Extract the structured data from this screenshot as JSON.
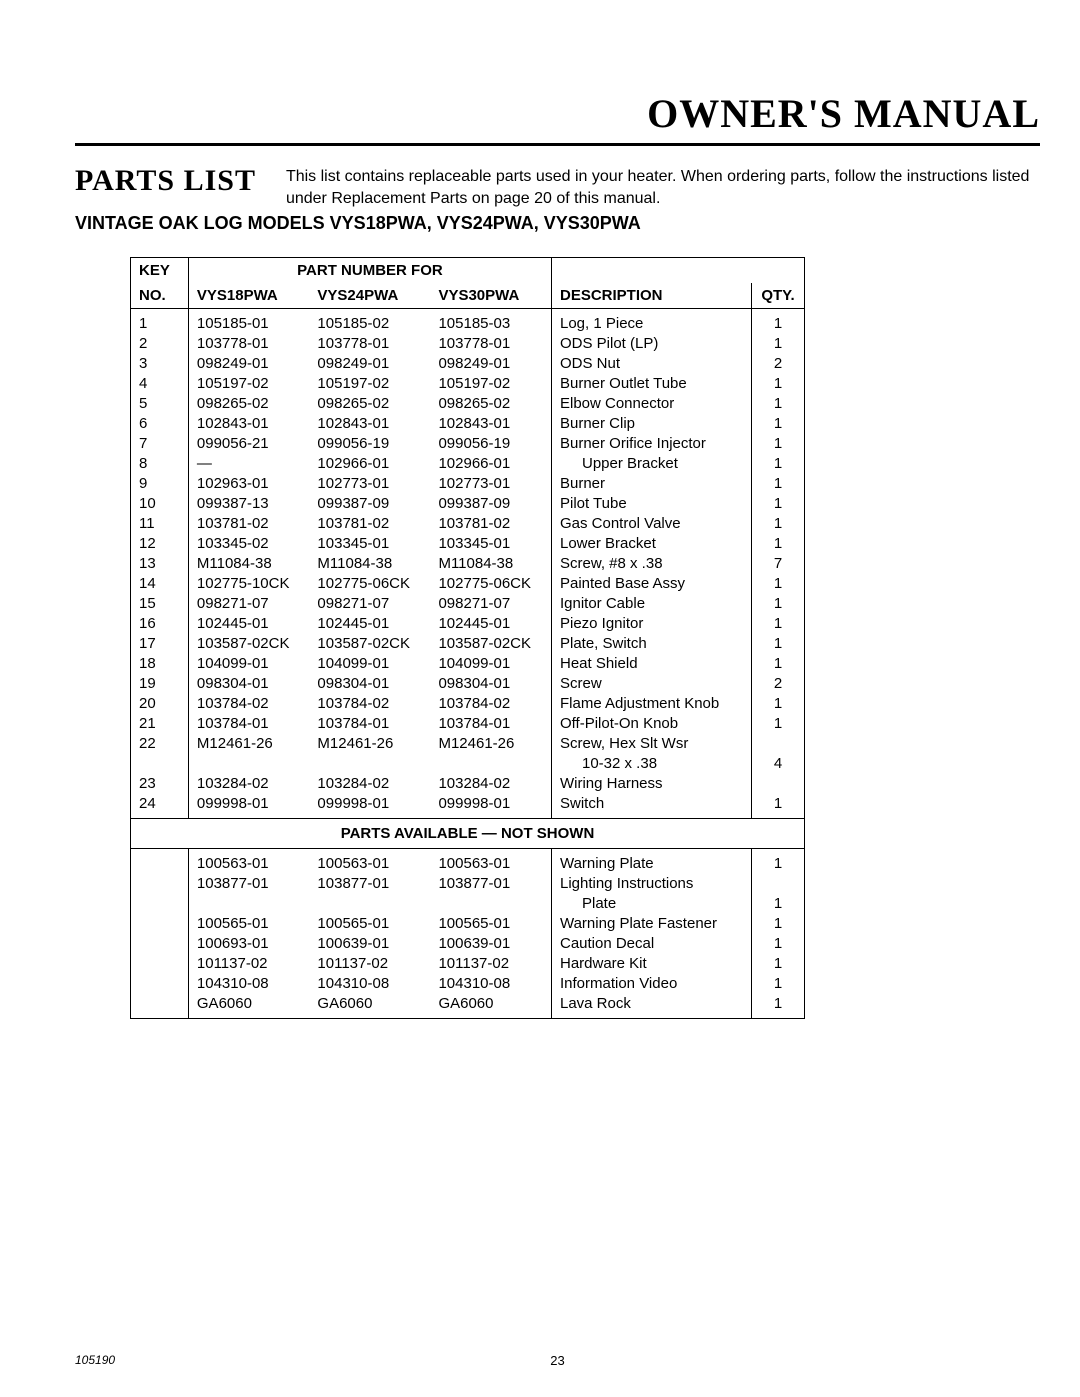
{
  "manual_title": "OWNER'S MANUAL",
  "section_title": "PARTS LIST",
  "intro_text": "This list contains replaceable parts used in your heater. When ordering parts, follow the instructions listed under Replacement Parts on page 20 of this manual.",
  "models_heading": "VINTAGE OAK LOG MODELS VYS18PWA, VYS24PWA, VYS30PWA",
  "headers": {
    "key_top": "KEY",
    "key_bot": "NO.",
    "part_group": "PART NUMBER FOR",
    "p1": "VYS18PWA",
    "p2": "VYS24PWA",
    "p3": "VYS30PWA",
    "desc": "DESCRIPTION",
    "qty": "QTY."
  },
  "rows": [
    {
      "k": "1",
      "a": "105185-01",
      "b": "105185-02",
      "c": "105185-03",
      "d": "Log, 1 Piece",
      "q": "1"
    },
    {
      "k": "2",
      "a": "103778-01",
      "b": "103778-01",
      "c": "103778-01",
      "d": "ODS Pilot (LP)",
      "q": "1"
    },
    {
      "k": "3",
      "a": "098249-01",
      "b": "098249-01",
      "c": "098249-01",
      "d": "ODS Nut",
      "q": "2"
    },
    {
      "k": "4",
      "a": "105197-02",
      "b": "105197-02",
      "c": "105197-02",
      "d": "Burner Outlet Tube",
      "q": "1"
    },
    {
      "k": "5",
      "a": "098265-02",
      "b": "098265-02",
      "c": "098265-02",
      "d": "Elbow Connector",
      "q": "1"
    },
    {
      "k": "6",
      "a": "102843-01",
      "b": "102843-01",
      "c": "102843-01",
      "d": "Burner Clip",
      "q": "1"
    },
    {
      "k": "7",
      "a": "099056-21",
      "b": "099056-19",
      "c": "099056-19",
      "d": "Burner Orifice Injector",
      "q": "1"
    },
    {
      "k": "8",
      "a": "—",
      "b": "102966-01",
      "c": "102966-01",
      "d": "Upper Bracket",
      "q": "1",
      "indent": true
    },
    {
      "k": "9",
      "a": "102963-01",
      "b": "102773-01",
      "c": "102773-01",
      "d": "Burner",
      "q": "1"
    },
    {
      "k": "10",
      "a": "099387-13",
      "b": "099387-09",
      "c": "099387-09",
      "d": "Pilot Tube",
      "q": "1"
    },
    {
      "k": "11",
      "a": "103781-02",
      "b": "103781-02",
      "c": "103781-02",
      "d": "Gas Control Valve",
      "q": "1"
    },
    {
      "k": "12",
      "a": "103345-02",
      "b": "103345-01",
      "c": "103345-01",
      "d": "Lower Bracket",
      "q": "1"
    },
    {
      "k": "13",
      "a": "M11084-38",
      "b": "M11084-38",
      "c": "M11084-38",
      "d": "Screw, #8 x .38",
      "q": "7"
    },
    {
      "k": "14",
      "a": "102775-10CK",
      "b": "102775-06CK",
      "c": "102775-06CK",
      "d": "Painted Base Assy",
      "q": "1"
    },
    {
      "k": "15",
      "a": "098271-07",
      "b": "098271-07",
      "c": "098271-07",
      "d": "Ignitor Cable",
      "q": "1"
    },
    {
      "k": "16",
      "a": "102445-01",
      "b": "102445-01",
      "c": "102445-01",
      "d": "Piezo Ignitor",
      "q": "1"
    },
    {
      "k": "17",
      "a": "103587-02CK",
      "b": "103587-02CK",
      "c": "103587-02CK",
      "d": "Plate, Switch",
      "q": "1"
    },
    {
      "k": "18",
      "a": "104099-01",
      "b": "104099-01",
      "c": "104099-01",
      "d": "Heat Shield",
      "q": "1"
    },
    {
      "k": "19",
      "a": "098304-01",
      "b": "098304-01",
      "c": "098304-01",
      "d": "Screw",
      "q": "2"
    },
    {
      "k": "20",
      "a": "103784-02",
      "b": "103784-02",
      "c": "103784-02",
      "d": "Flame Adjustment Knob",
      "q": "1"
    },
    {
      "k": "21",
      "a": "103784-01",
      "b": "103784-01",
      "c": "103784-01",
      "d": "Off-Pilot-On Knob",
      "q": "1"
    },
    {
      "k": "22",
      "a": "M12461-26",
      "b": "M12461-26",
      "c": "M12461-26",
      "d": "Screw, Hex Slt Wsr",
      "q": ""
    },
    {
      "k": "",
      "a": "",
      "b": "",
      "c": "",
      "d": "10-32 x .38",
      "q": "4",
      "indent": true
    },
    {
      "k": "23",
      "a": "103284-02",
      "b": "103284-02",
      "c": "103284-02",
      "d": "Wiring Harness",
      "q": ""
    },
    {
      "k": "24",
      "a": "099998-01",
      "b": "099998-01",
      "c": "099998-01",
      "d": "Switch",
      "q": "1"
    }
  ],
  "not_shown_header": "PARTS AVAILABLE — NOT SHOWN",
  "rows2": [
    {
      "k": "",
      "a": "100563-01",
      "b": "100563-01",
      "c": "100563-01",
      "d": "Warning Plate",
      "q": "1"
    },
    {
      "k": "",
      "a": "103877-01",
      "b": "103877-01",
      "c": "103877-01",
      "d": "Lighting Instructions",
      "q": ""
    },
    {
      "k": "",
      "a": "",
      "b": "",
      "c": "",
      "d": "Plate",
      "q": "1",
      "indent": true
    },
    {
      "k": "",
      "a": "100565-01",
      "b": "100565-01",
      "c": "100565-01",
      "d": "Warning Plate Fastener",
      "q": "1"
    },
    {
      "k": "",
      "a": "100693-01",
      "b": "100639-01",
      "c": "100639-01",
      "d": "Caution Decal",
      "q": "1"
    },
    {
      "k": "",
      "a": "101137-02",
      "b": "101137-02",
      "c": "101137-02",
      "d": "Hardware Kit",
      "q": "1"
    },
    {
      "k": "",
      "a": "104310-08",
      "b": "104310-08",
      "c": "104310-08",
      "d": "Information Video",
      "q": "1"
    },
    {
      "k": "",
      "a": "GA6060",
      "b": "GA6060",
      "c": "GA6060",
      "d": "Lava Rock",
      "q": "1"
    }
  ],
  "footer_doc": "105190",
  "footer_page": "23",
  "colors": {
    "text": "#000000",
    "bg": "#ffffff",
    "rule": "#000000"
  }
}
